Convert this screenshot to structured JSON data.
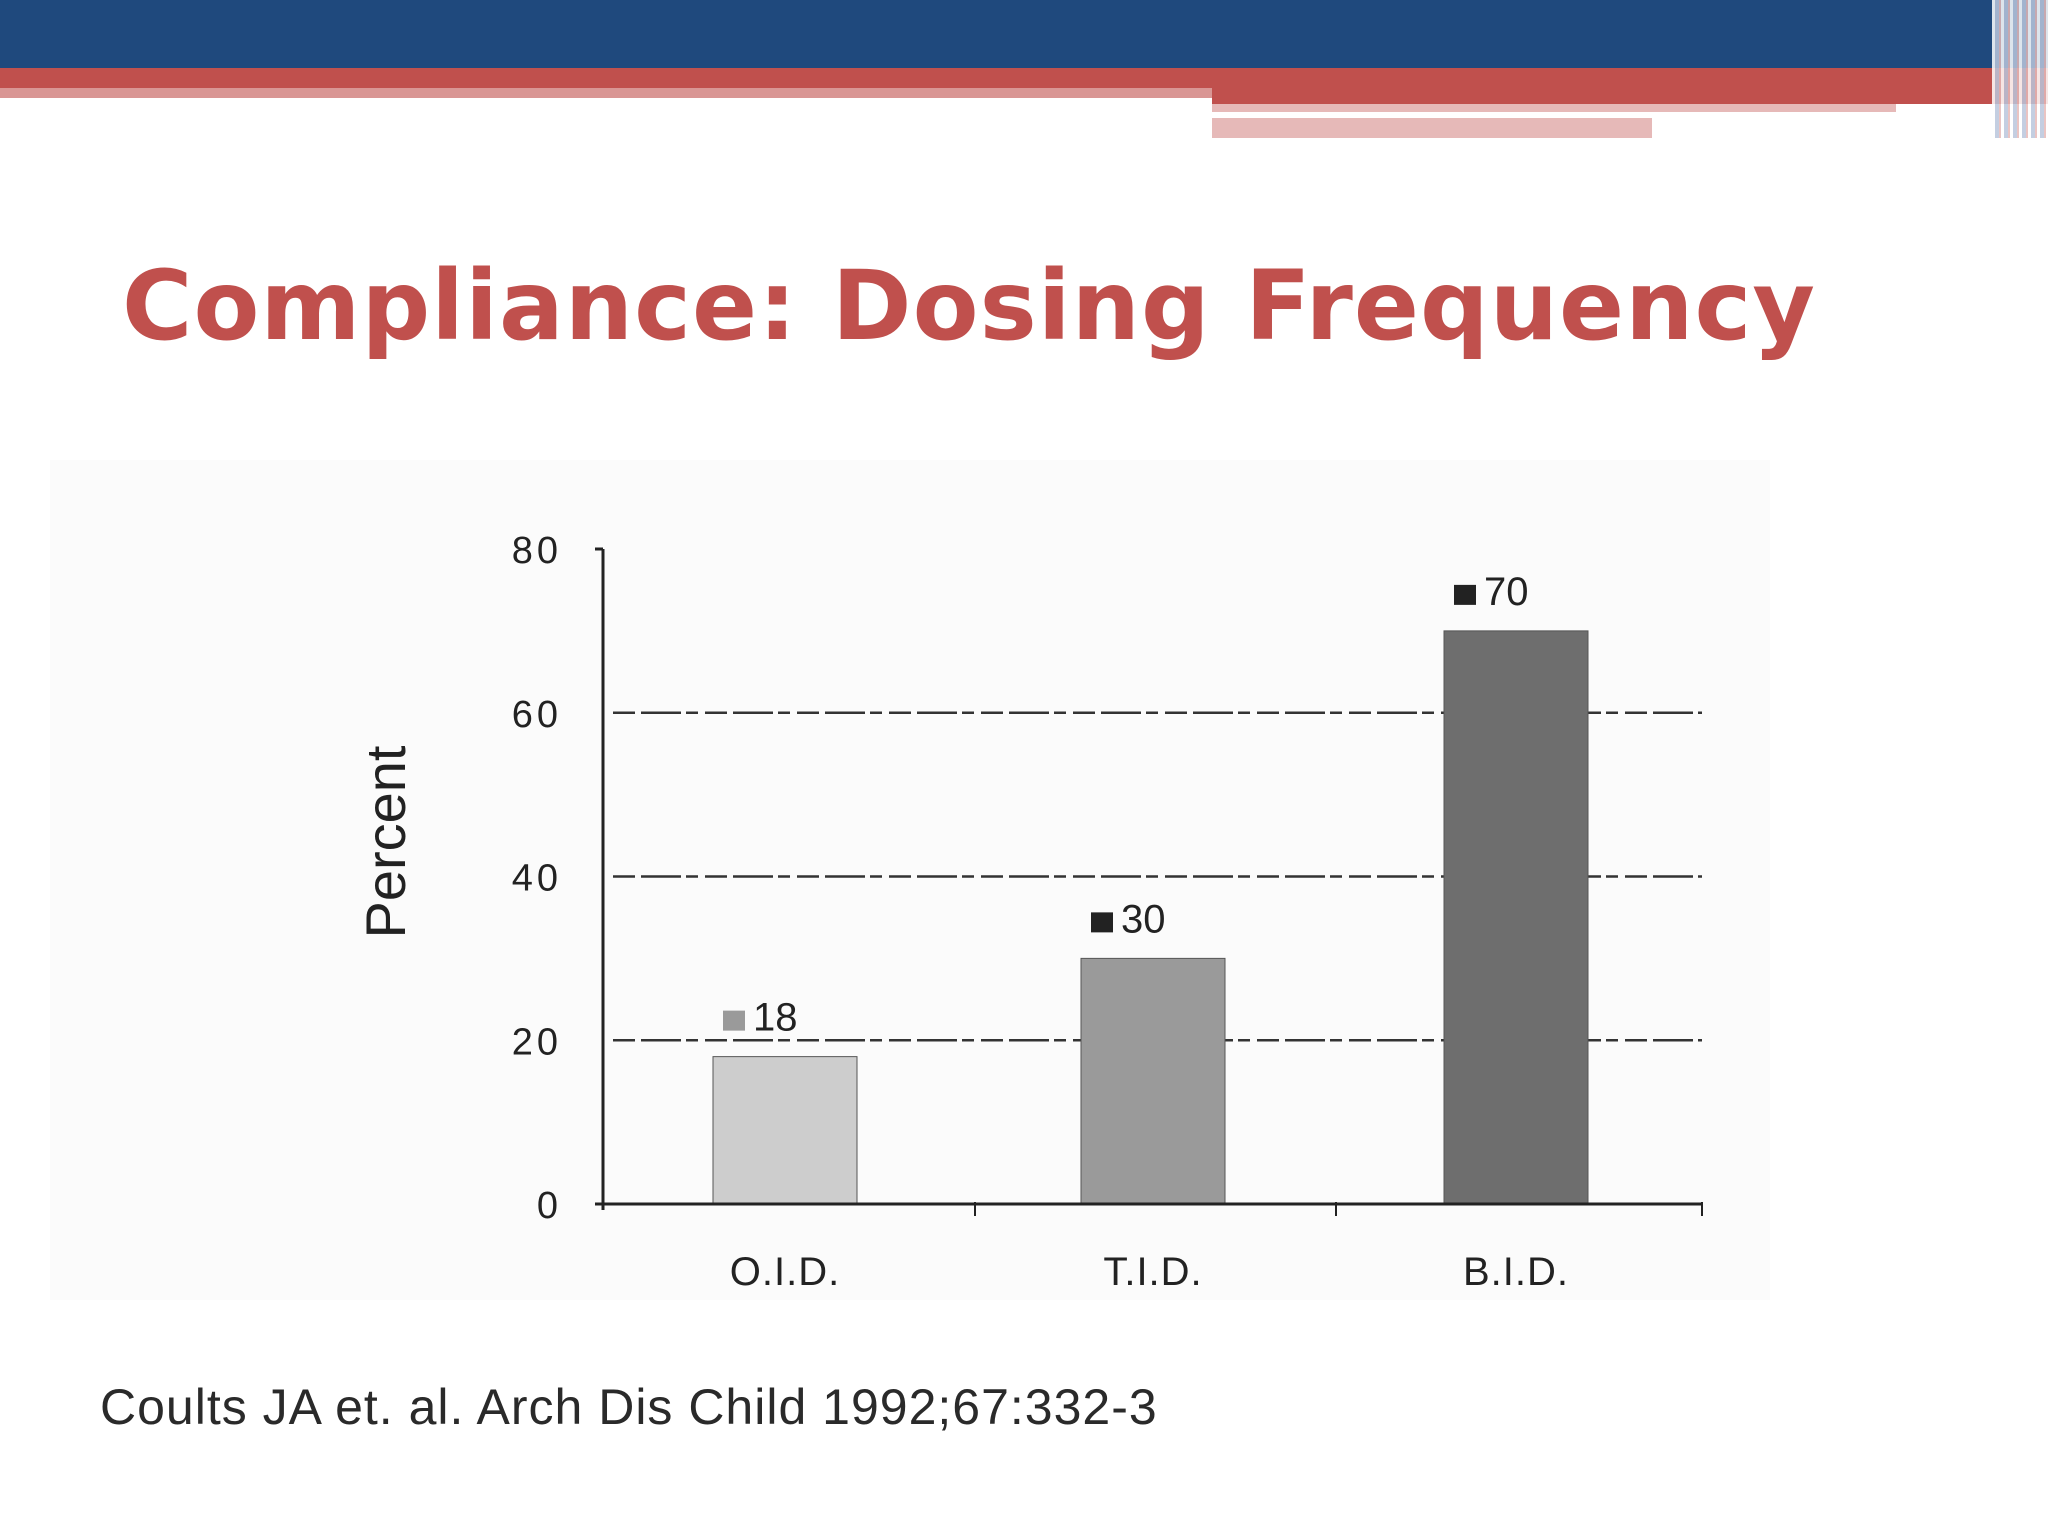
{
  "slide": {
    "title": "Compliance: Dosing Frequency",
    "citation": "Coults JA et. al. Arch Dis Child 1992;67:332-3"
  },
  "colors": {
    "title": "#c0504d",
    "top_band": "#1f497d",
    "accent_red": "#c0504d"
  },
  "chart_data": {
    "type": "bar",
    "ylabel": "Percent",
    "ylim": [
      0,
      80
    ],
    "yticks": [
      0,
      20,
      40,
      60,
      80
    ],
    "grid": "horizontal-dashed",
    "categories": [
      "O.I.D.",
      "T.I.D.",
      "B.I.D."
    ],
    "values": [
      18,
      30,
      70
    ],
    "value_labels": [
      "18",
      "30",
      "70"
    ],
    "bar_colors": [
      "#cdcdcd",
      "#9a9a9a",
      "#6e6e6e"
    ]
  }
}
